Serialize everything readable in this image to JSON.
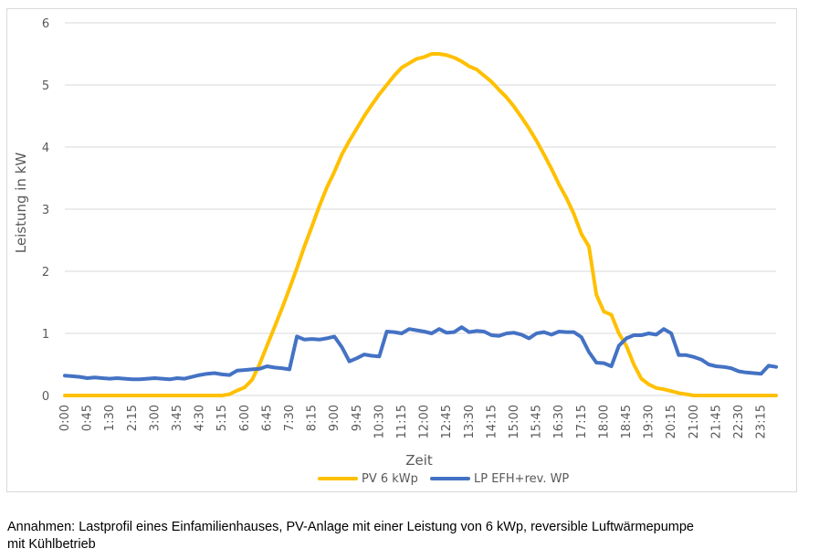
{
  "chart_data": {
    "type": "line",
    "ylabel": "Leistung in kW",
    "xlabel": "Zeit",
    "ylim": [
      0,
      6
    ],
    "yticks": [
      "0",
      "1",
      "2",
      "3",
      "4",
      "5",
      "6"
    ],
    "xtick_labels": [
      "0:00",
      "0:45",
      "1:30",
      "2:15",
      "3:00",
      "3:45",
      "4:30",
      "5:15",
      "6:00",
      "6:45",
      "7:30",
      "8:15",
      "9:00",
      "9:45",
      "10:30",
      "11:15",
      "12:00",
      "12:45",
      "13:30",
      "14:15",
      "15:00",
      "15:45",
      "16:30",
      "17:15",
      "18:00",
      "18:45",
      "19:30",
      "20:15",
      "21:00",
      "21:45",
      "22:30",
      "23:15"
    ],
    "grid": "horizontal",
    "legend_position": "bottom",
    "series": [
      {
        "name": "PV 6 kWp",
        "color": "#ffc000",
        "values": [
          0,
          0,
          0,
          0,
          0,
          0,
          0,
          0,
          0,
          0,
          0,
          0,
          0,
          0,
          0,
          0,
          0,
          0,
          0,
          0,
          0,
          0,
          0.02,
          0.08,
          0.13,
          0.25,
          0.5,
          0.8,
          1.1,
          1.4,
          1.72,
          2.05,
          2.4,
          2.72,
          3.05,
          3.35,
          3.6,
          3.88,
          4.1,
          4.3,
          4.5,
          4.68,
          4.85,
          5.0,
          5.15,
          5.28,
          5.35,
          5.42,
          5.45,
          5.5,
          5.5,
          5.48,
          5.44,
          5.38,
          5.3,
          5.25,
          5.15,
          5.05,
          4.92,
          4.8,
          4.65,
          4.48,
          4.3,
          4.1,
          3.88,
          3.65,
          3.4,
          3.18,
          2.92,
          2.6,
          2.4,
          1.62,
          1.35,
          1.3,
          1.0,
          0.8,
          0.5,
          0.27,
          0.18,
          0.12,
          0.1,
          0.07,
          0.04,
          0.02,
          0,
          0,
          0,
          0,
          0,
          0,
          0,
          0,
          0,
          0,
          0,
          0
        ]
      },
      {
        "name": "LP EFH+rev. WP",
        "color": "#4472c4",
        "values": [
          0.32,
          0.31,
          0.3,
          0.28,
          0.29,
          0.28,
          0.27,
          0.28,
          0.27,
          0.26,
          0.26,
          0.27,
          0.28,
          0.27,
          0.26,
          0.28,
          0.27,
          0.3,
          0.33,
          0.35,
          0.36,
          0.34,
          0.33,
          0.4,
          0.41,
          0.42,
          0.43,
          0.47,
          0.45,
          0.44,
          0.42,
          0.95,
          0.9,
          0.91,
          0.9,
          0.92,
          0.95,
          0.78,
          0.55,
          0.6,
          0.66,
          0.64,
          0.63,
          1.03,
          1.02,
          1.0,
          1.07,
          1.05,
          1.03,
          1.0,
          1.07,
          1.01,
          1.02,
          1.1,
          1.02,
          1.04,
          1.03,
          0.97,
          0.96,
          1.0,
          1.01,
          0.98,
          0.92,
          1.0,
          1.02,
          0.98,
          1.03,
          1.02,
          1.02,
          0.94,
          0.7,
          0.53,
          0.52,
          0.47,
          0.8,
          0.92,
          0.97,
          0.97,
          1.0,
          0.98,
          1.07,
          1.0,
          0.65,
          0.65,
          0.62,
          0.58,
          0.5,
          0.47,
          0.46,
          0.44,
          0.39,
          0.37,
          0.36,
          0.35,
          0.48,
          0.46
        ]
      }
    ]
  },
  "caption": {
    "line1": "Annahmen: Lastprofil eines Einfamilienhauses, PV-Anlage mit einer Leistung von 6 kWp, reversible Luftwärmepumpe",
    "line2": "mit Kühlbetrieb"
  }
}
